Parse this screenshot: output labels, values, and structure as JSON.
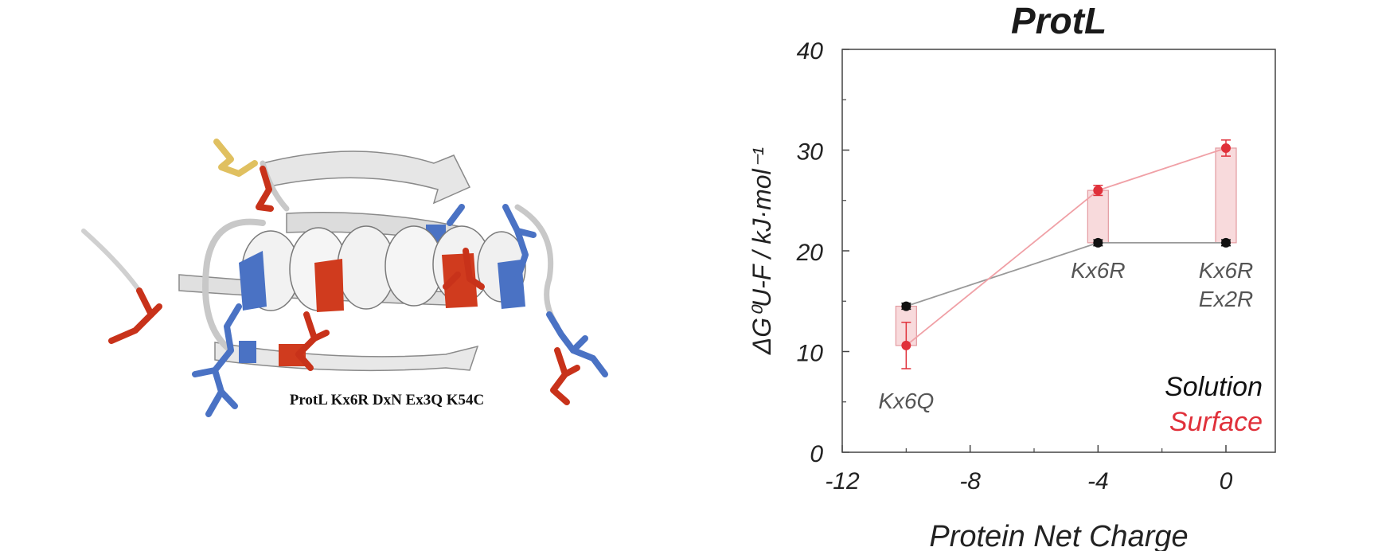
{
  "protein_panel": {
    "caption": "ProtL Kx6R DxN Ex3Q K54C",
    "colors": {
      "ribbon": "#e4e4e4",
      "positive": "#4a72c4",
      "negative": "#d03b1e",
      "cysteine": "#e0c060"
    }
  },
  "chart_data": {
    "type": "scatter",
    "title": "ProtL",
    "xlabel": "Protein Net Charge",
    "ylabel": "ΔG⁰U-F / kJ·mol⁻¹",
    "xlim": [
      -12,
      0
    ],
    "ylim": [
      0,
      40
    ],
    "xticks": [
      -12,
      -8,
      -4,
      0
    ],
    "yticks": [
      0,
      10,
      20,
      30,
      40
    ],
    "grid": false,
    "legend_position": "bottom-right",
    "series": [
      {
        "name": "Solution",
        "color": "#111111",
        "line_color": "#999999",
        "x": [
          -10,
          -4,
          0
        ],
        "y": [
          14.5,
          20.8,
          20.8
        ],
        "err": [
          0.3,
          0.3,
          0.3
        ]
      },
      {
        "name": "Surface",
        "color": "#e0303a",
        "line_color": "#f0a0a6",
        "x": [
          -10,
          -4,
          0
        ],
        "y": [
          10.6,
          26.0,
          30.2
        ],
        "err": [
          2.3,
          0.5,
          0.8
        ]
      }
    ],
    "annotations": [
      {
        "x": -10,
        "lines": [
          "Kx6Q"
        ]
      },
      {
        "x": -4,
        "lines": [
          "Kx6R"
        ]
      },
      {
        "x": 0,
        "lines": [
          "Kx6R",
          "Ex2R"
        ]
      }
    ]
  }
}
